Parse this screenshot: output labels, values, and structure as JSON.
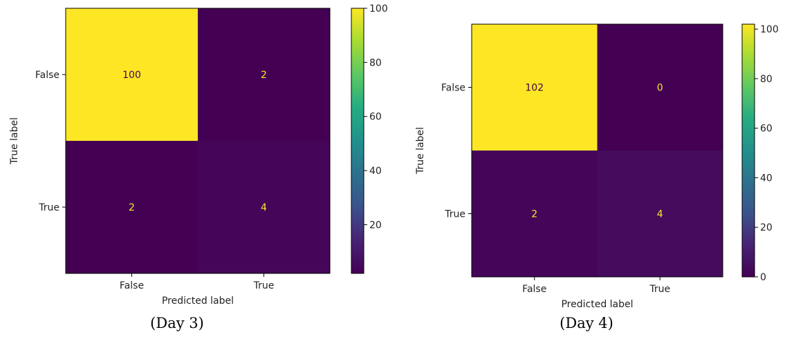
{
  "chart_data": [
    {
      "type": "heatmap",
      "caption": "(Day 3)",
      "xlabel": "Predicted label",
      "ylabel": "True label",
      "x_categories": [
        "False",
        "True"
      ],
      "y_categories": [
        "False",
        "True"
      ],
      "values": [
        [
          100,
          2
        ],
        [
          2,
          4
        ]
      ],
      "colorbar": {
        "min": 2,
        "max": 100,
        "ticks": [
          20,
          40,
          60,
          80,
          100
        ],
        "colormap": "viridis"
      },
      "text_colors": {
        "on_dark": "#fde725",
        "on_light": "#440154"
      }
    },
    {
      "type": "heatmap",
      "caption": "(Day 4)",
      "xlabel": "Predicted label",
      "ylabel": "True label",
      "x_categories": [
        "False",
        "True"
      ],
      "y_categories": [
        "False",
        "True"
      ],
      "values": [
        [
          102,
          0
        ],
        [
          2,
          4
        ]
      ],
      "colorbar": {
        "min": 0,
        "max": 102,
        "ticks": [
          0,
          20,
          40,
          60,
          80,
          100
        ],
        "colormap": "viridis"
      },
      "text_colors": {
        "on_dark": "#fde725",
        "on_light": "#440154"
      }
    }
  ]
}
